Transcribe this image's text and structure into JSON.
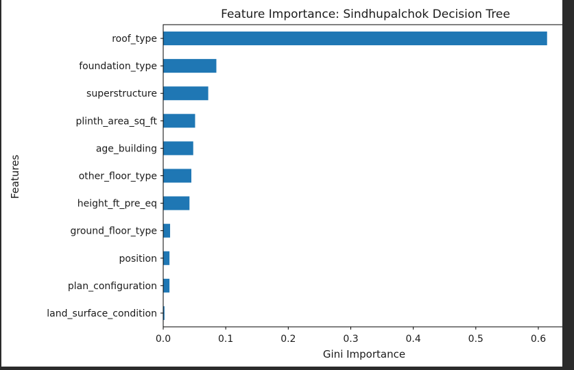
{
  "chart_data": {
    "type": "bar",
    "orientation": "horizontal",
    "title": "Feature Importance: Sindhupalchok Decision Tree",
    "xlabel": "Gini Importance",
    "ylabel": "Features",
    "xlim": [
      0,
      0.645
    ],
    "xticks": [
      0.0,
      0.1,
      0.2,
      0.3,
      0.4,
      0.5,
      0.6
    ],
    "xtick_labels": [
      "0.0",
      "0.1",
      "0.2",
      "0.3",
      "0.4",
      "0.5",
      "0.6"
    ],
    "categories": [
      "land_surface_condition",
      "plan_configuration",
      "position",
      "ground_floor_type",
      "height_ft_pre_eq",
      "other_floor_type",
      "age_building",
      "plinth_area_sq_ft",
      "superstructure",
      "foundation_type",
      "roof_type"
    ],
    "values": [
      0.002,
      0.01,
      0.01,
      0.011,
      0.042,
      0.045,
      0.048,
      0.051,
      0.072,
      0.085,
      0.614
    ],
    "bar_color": "#1f77b4",
    "grid": false,
    "legend": false
  }
}
